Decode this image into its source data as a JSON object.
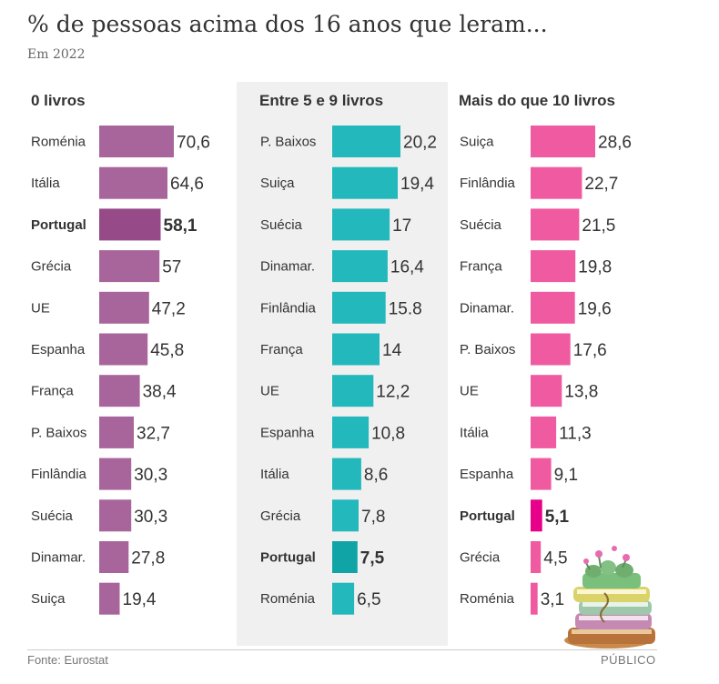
{
  "title": "% de pessoas acima dos 16 anos que leram...",
  "subtitle": "Em 2022",
  "footer": {
    "source": "Fonte: Eurostat",
    "brand": "PÚBLICO"
  },
  "colors": {
    "purple": "#a8659b",
    "purple_highlight": "#964a88",
    "teal": "#23b8bb",
    "teal_highlight": "#10a4a6",
    "pink": "#f05aa0",
    "pink_highlight": "#e8008a",
    "panel_background": "#f0f0f0"
  },
  "chart_data": [
    {
      "type": "bar",
      "title": "0 livros",
      "highlight": "Portugal",
      "categories": [
        "Roménia",
        "Itália",
        "Portugal",
        "Grécia",
        "UE",
        "Espanha",
        "França",
        "P. Baixos",
        "Finlândia",
        "Suécia",
        "Dinamar.",
        "Suiça"
      ],
      "values": [
        70.6,
        64.6,
        58.1,
        57,
        47.2,
        45.8,
        38.4,
        32.7,
        30.3,
        30.3,
        27.8,
        19.4
      ],
      "labels": [
        "70,6",
        "64,6",
        "58,1",
        "57",
        "47,2",
        "45,8",
        "38,4",
        "32,7",
        "30,3",
        "30,3",
        "27,8",
        "19,4"
      ]
    },
    {
      "type": "bar",
      "title": "Entre 5 e 9 livros",
      "highlight": "Portugal",
      "categories": [
        "P. Baixos",
        "Suiça",
        "Suécia",
        "Dinamar.",
        "Finlândia",
        "França",
        "UE",
        "Espanha",
        "Itália",
        "Grécia",
        "Portugal",
        "Roménia"
      ],
      "values": [
        20.2,
        19.4,
        17,
        16.4,
        15.8,
        14,
        12.2,
        10.8,
        8.6,
        7.8,
        7.5,
        6.5
      ],
      "labels": [
        "20,2",
        "19,4",
        "17",
        "16,4",
        "15.8",
        "14",
        "12,2",
        "10,8",
        "8,6",
        "7,8",
        "7,5",
        "6,5"
      ]
    },
    {
      "type": "bar",
      "title": "Mais do que 10 livros",
      "highlight": "Portugal",
      "categories": [
        "Suiça",
        "Finlândia",
        "Suécia",
        "França",
        "Dinamar.",
        "P. Baixos",
        "UE",
        "Itália",
        "Espanha",
        "Portugal",
        "Grécia",
        "Roménia"
      ],
      "values": [
        28.6,
        22.7,
        21.5,
        19.8,
        19.6,
        17.6,
        13.8,
        11.3,
        9.1,
        5.1,
        4.5,
        3.1
      ],
      "labels": [
        "28,6",
        "22,7",
        "21,5",
        "19,8",
        "19,6",
        "17,6",
        "13,8",
        "11,3",
        "9,1",
        "5,1",
        "4,5",
        "3,1"
      ]
    }
  ]
}
